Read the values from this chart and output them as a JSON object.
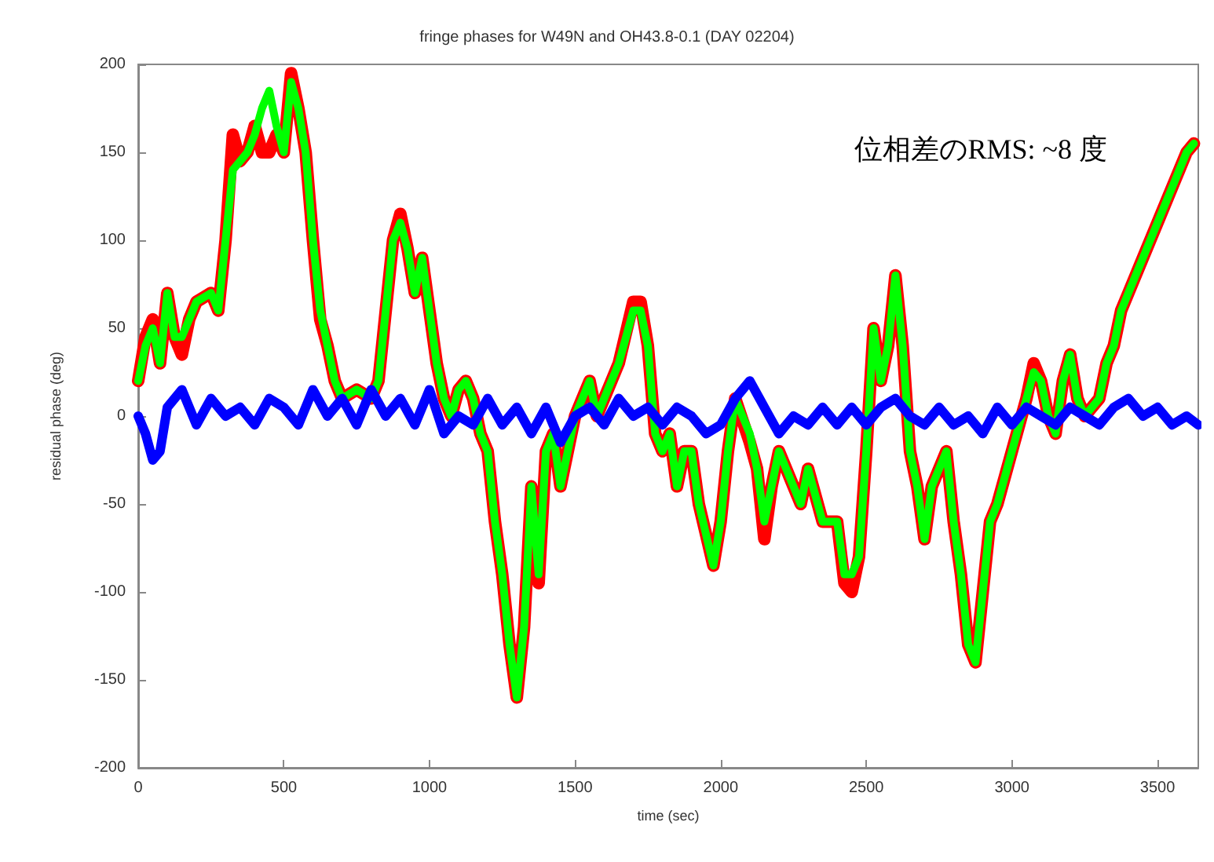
{
  "chart_data": {
    "type": "line",
    "title": "fringe phases for W49N and OH43.8-0.1 (DAY 02204)",
    "xlabel": "time (sec)",
    "ylabel": "residual phase (deg)",
    "annotations": [
      "位相差のRMS: ~8 度"
    ],
    "xlim": [
      0,
      3640
    ],
    "xticks": [
      0,
      500,
      1000,
      1500,
      2000,
      2500,
      3000,
      3500
    ],
    "ylim": [
      -200,
      200
    ],
    "yticks": [
      -200,
      -150,
      -100,
      -50,
      0,
      50,
      100,
      150,
      200
    ],
    "marker": "none",
    "line_style": "solid",
    "series": [
      {
        "color": "#ff0000",
        "x": [
          0,
          25,
          50,
          75,
          100,
          125,
          150,
          175,
          200,
          250,
          275,
          300,
          325,
          350,
          375,
          400,
          425,
          450,
          475,
          500,
          525,
          550,
          575,
          600,
          625,
          650,
          675,
          700,
          750,
          800,
          825,
          850,
          875,
          900,
          925,
          950,
          975,
          1000,
          1025,
          1050,
          1075,
          1100,
          1125,
          1150,
          1175,
          1200,
          1225,
          1250,
          1275,
          1300,
          1325,
          1350,
          1375,
          1400,
          1425,
          1450,
          1475,
          1500,
          1525,
          1550,
          1575,
          1625,
          1650,
          1700,
          1725,
          1750,
          1775,
          1800,
          1825,
          1850,
          1875,
          1900,
          1925,
          1975,
          2000,
          2025,
          2050,
          2100,
          2125,
          2150,
          2175,
          2200,
          2250,
          2275,
          2300,
          2350,
          2400,
          2425,
          2450,
          2475,
          2500,
          2525,
          2550,
          2575,
          2600,
          2625,
          2650,
          2675,
          2700,
          2725,
          2775,
          2800,
          2825,
          2850,
          2875,
          2900,
          2925,
          2950,
          3000,
          3050,
          3075,
          3100,
          3125,
          3150,
          3175,
          3200,
          3225,
          3250,
          3300,
          3325,
          3350,
          3375,
          3400,
          3450,
          3500,
          3550,
          3600,
          3625
        ],
        "values": [
          20,
          45,
          55,
          30,
          70,
          45,
          35,
          55,
          65,
          70,
          60,
          100,
          160,
          145,
          150,
          165,
          150,
          150,
          160,
          150,
          195,
          175,
          150,
          100,
          55,
          40,
          20,
          10,
          15,
          10,
          20,
          60,
          100,
          115,
          95,
          70,
          90,
          60,
          30,
          10,
          0,
          15,
          20,
          10,
          -10,
          -20,
          -60,
          -90,
          -130,
          -160,
          -120,
          -40,
          -95,
          -20,
          -10,
          -40,
          -20,
          0,
          10,
          20,
          0,
          20,
          30,
          65,
          65,
          40,
          -10,
          -20,
          -10,
          -40,
          -20,
          -20,
          -50,
          -85,
          -60,
          -20,
          10,
          -15,
          -30,
          -70,
          -40,
          -20,
          -40,
          -50,
          -30,
          -60,
          -60,
          -95,
          -100,
          -80,
          -20,
          50,
          20,
          40,
          80,
          40,
          -20,
          -40,
          -70,
          -40,
          -20,
          -60,
          -90,
          -130,
          -140,
          -100,
          -60,
          -50,
          -20,
          10,
          30,
          20,
          0,
          -10,
          20,
          35,
          10,
          0,
          10,
          30,
          40,
          60,
          70,
          90,
          110,
          130,
          150,
          155
        ]
      },
      {
        "color": "#00ff00",
        "x": [
          0,
          25,
          50,
          75,
          100,
          125,
          150,
          175,
          200,
          250,
          275,
          300,
          325,
          350,
          375,
          400,
          425,
          450,
          475,
          500,
          525,
          550,
          575,
          600,
          625,
          650,
          675,
          700,
          750,
          800,
          825,
          850,
          875,
          900,
          925,
          950,
          975,
          1000,
          1025,
          1050,
          1075,
          1100,
          1125,
          1150,
          1175,
          1200,
          1225,
          1250,
          1275,
          1300,
          1325,
          1350,
          1375,
          1400,
          1425,
          1450,
          1475,
          1500,
          1525,
          1550,
          1575,
          1625,
          1650,
          1700,
          1725,
          1750,
          1775,
          1800,
          1825,
          1850,
          1875,
          1900,
          1925,
          1975,
          2000,
          2025,
          2050,
          2100,
          2125,
          2150,
          2175,
          2200,
          2250,
          2275,
          2300,
          2350,
          2400,
          2425,
          2450,
          2475,
          2500,
          2525,
          2550,
          2575,
          2600,
          2625,
          2650,
          2675,
          2700,
          2725,
          2775,
          2800,
          2825,
          2850,
          2875,
          2900,
          2925,
          2950,
          3000,
          3050,
          3075,
          3100,
          3125,
          3150,
          3175,
          3200,
          3225,
          3250,
          3300,
          3325,
          3350,
          3375,
          3400,
          3450,
          3500,
          3550,
          3600,
          3625
        ],
        "values": [
          20,
          40,
          50,
          30,
          70,
          45,
          45,
          55,
          65,
          70,
          60,
          100,
          140,
          145,
          150,
          160,
          175,
          185,
          165,
          150,
          190,
          175,
          150,
          100,
          60,
          40,
          20,
          10,
          15,
          10,
          20,
          60,
          100,
          110,
          95,
          70,
          90,
          60,
          30,
          10,
          0,
          15,
          20,
          10,
          -10,
          -20,
          -60,
          -90,
          -130,
          -160,
          -120,
          -40,
          -90,
          -20,
          -10,
          -40,
          -20,
          0,
          10,
          20,
          0,
          20,
          30,
          60,
          60,
          40,
          -10,
          -20,
          -10,
          -40,
          -20,
          -20,
          -50,
          -85,
          -60,
          -20,
          10,
          -10,
          -30,
          -60,
          -40,
          -20,
          -40,
          -50,
          -30,
          -60,
          -60,
          -90,
          -90,
          -80,
          -20,
          50,
          20,
          40,
          80,
          40,
          -20,
          -40,
          -70,
          -40,
          -20,
          -60,
          -90,
          -130,
          -140,
          -100,
          -60,
          -50,
          -20,
          10,
          25,
          20,
          0,
          -10,
          20,
          35,
          10,
          0,
          10,
          30,
          40,
          60,
          70,
          90,
          110,
          130,
          150,
          155
        ]
      },
      {
        "color": "#0000ff",
        "x": [
          0,
          25,
          50,
          75,
          100,
          150,
          200,
          250,
          300,
          350,
          400,
          450,
          500,
          550,
          600,
          650,
          700,
          750,
          800,
          850,
          900,
          950,
          1000,
          1050,
          1100,
          1150,
          1200,
          1250,
          1300,
          1350,
          1400,
          1450,
          1500,
          1550,
          1600,
          1650,
          1700,
          1750,
          1800,
          1850,
          1900,
          1950,
          2000,
          2050,
          2100,
          2150,
          2200,
          2250,
          2300,
          2350,
          2400,
          2450,
          2500,
          2550,
          2600,
          2650,
          2700,
          2750,
          2800,
          2850,
          2900,
          2950,
          3000,
          3050,
          3100,
          3150,
          3200,
          3250,
          3300,
          3350,
          3400,
          3450,
          3500,
          3550,
          3600,
          3640
        ],
        "values": [
          0,
          -10,
          -25,
          -20,
          5,
          15,
          -5,
          10,
          0,
          5,
          -5,
          10,
          5,
          -5,
          15,
          0,
          10,
          -5,
          15,
          0,
          10,
          -5,
          15,
          -10,
          0,
          -5,
          10,
          -5,
          5,
          -10,
          5,
          -15,
          0,
          5,
          -5,
          10,
          0,
          5,
          -5,
          5,
          0,
          -10,
          -5,
          10,
          20,
          5,
          -10,
          0,
          -5,
          5,
          -5,
          5,
          -5,
          5,
          10,
          0,
          -5,
          5,
          -5,
          0,
          -10,
          5,
          -5,
          5,
          0,
          -5,
          5,
          0,
          -5,
          5,
          10,
          0,
          5,
          -5,
          0,
          -5
        ]
      }
    ]
  }
}
